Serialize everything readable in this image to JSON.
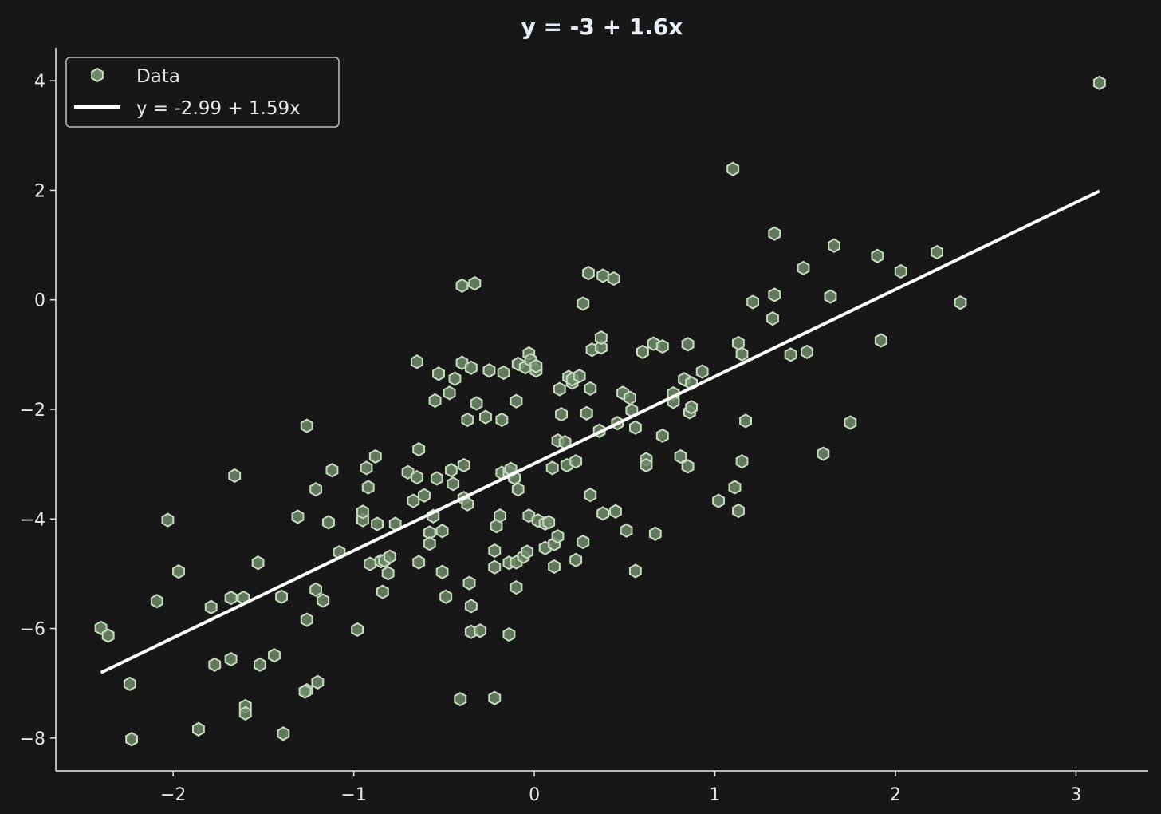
{
  "chart_data": {
    "type": "scatter",
    "title": "y = -3 + 1.6x",
    "xlabel": "",
    "ylabel": "",
    "xlim": [
      -2.65,
      3.4
    ],
    "ylim": [
      -8.6,
      4.6
    ],
    "xticks": [
      -2,
      -1,
      0,
      1,
      2,
      3
    ],
    "yticks": [
      -8,
      -6,
      -4,
      -2,
      0,
      2,
      4
    ],
    "grid": false,
    "legend": {
      "placement": "top-left",
      "entries": [
        "Data",
        "y = -2.99 + 1.59x"
      ]
    },
    "colors": {
      "background": "#171717",
      "marker_fill": "#6f8a6a",
      "marker_edge": "#c8dcc0",
      "fit_line": "#ffffff",
      "axis": "#e8e8e8"
    },
    "series": [
      {
        "name": "Data",
        "type": "scatter",
        "points": [
          [
            -2.4,
            -5.99
          ],
          [
            -2.36,
            -6.13
          ],
          [
            -2.24,
            -7.01
          ],
          [
            -2.23,
            -8.02
          ],
          [
            -2.09,
            -5.5
          ],
          [
            -2.03,
            -4.02
          ],
          [
            -1.97,
            -4.96
          ],
          [
            -1.86,
            -7.84
          ],
          [
            -1.79,
            -5.61
          ],
          [
            -1.77,
            -6.66
          ],
          [
            -1.68,
            -6.56
          ],
          [
            -1.68,
            -5.44
          ],
          [
            -1.66,
            -3.21
          ],
          [
            -1.61,
            -5.44
          ],
          [
            -1.6,
            -7.42
          ],
          [
            -1.6,
            -7.55
          ],
          [
            -1.53,
            -4.8
          ],
          [
            -1.52,
            -6.66
          ],
          [
            -1.44,
            -6.49
          ],
          [
            -1.4,
            -5.42
          ],
          [
            -1.39,
            -7.92
          ],
          [
            -1.31,
            -3.96
          ],
          [
            -1.26,
            -2.3
          ],
          [
            -1.26,
            -5.84
          ],
          [
            -1.26,
            -7.13
          ],
          [
            -1.27,
            -7.15
          ],
          [
            -1.21,
            -3.46
          ],
          [
            -1.21,
            -5.29
          ],
          [
            -1.2,
            -6.98
          ],
          [
            -1.17,
            -5.49
          ],
          [
            -1.14,
            -4.06
          ],
          [
            -1.12,
            -3.11
          ],
          [
            -1.08,
            -4.61
          ],
          [
            -0.98,
            -6.02
          ],
          [
            -0.95,
            -4.02
          ],
          [
            -0.95,
            -3.87
          ],
          [
            -0.93,
            -3.07
          ],
          [
            -0.92,
            -3.42
          ],
          [
            -0.91,
            -4.82
          ],
          [
            -0.88,
            -2.86
          ],
          [
            -0.87,
            -4.09
          ],
          [
            -0.85,
            -4.77
          ],
          [
            -0.84,
            -5.33
          ],
          [
            -0.83,
            -4.76
          ],
          [
            -0.81,
            -4.99
          ],
          [
            -0.8,
            -4.69
          ],
          [
            -0.77,
            -4.09
          ],
          [
            -0.7,
            -3.15
          ],
          [
            -0.67,
            -3.67
          ],
          [
            -0.65,
            -3.24
          ],
          [
            -0.65,
            -1.13
          ],
          [
            -0.64,
            -2.73
          ],
          [
            -0.64,
            -4.79
          ],
          [
            -0.61,
            -3.57
          ],
          [
            -0.58,
            -4.25
          ],
          [
            -0.58,
            -4.45
          ],
          [
            -0.56,
            -3.95
          ],
          [
            -0.55,
            -1.84
          ],
          [
            -0.54,
            -3.26
          ],
          [
            -0.53,
            -1.35
          ],
          [
            -0.51,
            -4.97
          ],
          [
            -0.51,
            -4.22
          ],
          [
            -0.49,
            -5.42
          ],
          [
            -0.47,
            -1.7
          ],
          [
            -0.46,
            -3.11
          ],
          [
            -0.45,
            -3.36
          ],
          [
            -0.44,
            -1.44
          ],
          [
            -0.41,
            -7.29
          ],
          [
            -0.4,
            0.26
          ],
          [
            -0.4,
            -1.15
          ],
          [
            -0.39,
            -3.62
          ],
          [
            -0.39,
            -3.02
          ],
          [
            -0.37,
            -3.73
          ],
          [
            -0.37,
            -2.19
          ],
          [
            -0.35,
            -1.24
          ],
          [
            -0.36,
            -5.17
          ],
          [
            -0.35,
            -5.59
          ],
          [
            -0.35,
            -6.06
          ],
          [
            -0.33,
            0.3
          ],
          [
            -0.32,
            -1.89
          ],
          [
            -0.3,
            -6.04
          ],
          [
            -0.27,
            -2.14
          ],
          [
            -0.25,
            -1.29
          ],
          [
            -0.22,
            -4.58
          ],
          [
            -0.22,
            -4.88
          ],
          [
            -0.22,
            -7.27
          ],
          [
            -0.21,
            -4.13
          ],
          [
            -0.19,
            -3.94
          ],
          [
            -0.18,
            -2.19
          ],
          [
            -0.18,
            -3.16
          ],
          [
            -0.17,
            -1.33
          ],
          [
            -0.14,
            -6.11
          ],
          [
            -0.14,
            -3.15
          ],
          [
            -0.14,
            -4.8
          ],
          [
            -0.13,
            -3.09
          ],
          [
            -0.11,
            -3.25
          ],
          [
            -0.1,
            -5.25
          ],
          [
            -0.1,
            -4.79
          ],
          [
            -0.1,
            -1.85
          ],
          [
            -0.09,
            -1.17
          ],
          [
            -0.09,
            -3.46
          ],
          [
            -0.06,
            -4.69
          ],
          [
            -0.05,
            -1.23
          ],
          [
            -0.04,
            -4.6
          ],
          [
            -0.03,
            -0.98
          ],
          [
            -0.02,
            -1.1
          ],
          [
            -0.03,
            -3.94
          ],
          [
            0.01,
            -1.29
          ],
          [
            0.01,
            -1.21
          ],
          [
            0.02,
            -4.03
          ],
          [
            0.06,
            -4.53
          ],
          [
            0.06,
            -4.08
          ],
          [
            0.08,
            -4.06
          ],
          [
            0.1,
            -3.07
          ],
          [
            0.11,
            -4.46
          ],
          [
            0.11,
            -4.87
          ],
          [
            0.13,
            -2.57
          ],
          [
            0.13,
            -4.32
          ],
          [
            0.14,
            -1.63
          ],
          [
            0.15,
            -2.09
          ],
          [
            0.17,
            -2.6
          ],
          [
            0.18,
            -3.02
          ],
          [
            0.19,
            -1.41
          ],
          [
            0.21,
            -1.51
          ],
          [
            0.21,
            -1.45
          ],
          [
            0.23,
            -2.95
          ],
          [
            0.23,
            -4.75
          ],
          [
            0.25,
            -1.39
          ],
          [
            0.27,
            -4.42
          ],
          [
            0.27,
            -0.07
          ],
          [
            0.29,
            -2.07
          ],
          [
            0.3,
            0.49
          ],
          [
            0.31,
            -1.62
          ],
          [
            0.31,
            -3.56
          ],
          [
            0.32,
            -0.91
          ],
          [
            0.36,
            -2.39
          ],
          [
            0.37,
            -0.87
          ],
          [
            0.37,
            -0.69
          ],
          [
            0.38,
            0.44
          ],
          [
            0.38,
            -3.9
          ],
          [
            0.44,
            0.39
          ],
          [
            0.45,
            -3.86
          ],
          [
            0.46,
            -2.25
          ],
          [
            0.49,
            -1.7
          ],
          [
            0.51,
            -4.21
          ],
          [
            0.53,
            -1.79
          ],
          [
            0.54,
            -2.02
          ],
          [
            0.56,
            -2.33
          ],
          [
            0.56,
            -4.95
          ],
          [
            0.6,
            -0.95
          ],
          [
            0.62,
            -2.91
          ],
          [
            0.62,
            -3.02
          ],
          [
            0.66,
            -0.8
          ],
          [
            0.67,
            -4.27
          ],
          [
            0.71,
            -0.85
          ],
          [
            0.71,
            -2.48
          ],
          [
            0.77,
            -1.71
          ],
          [
            0.77,
            -1.86
          ],
          [
            0.81,
            -2.86
          ],
          [
            0.83,
            -1.45
          ],
          [
            0.85,
            -0.81
          ],
          [
            0.85,
            -3.04
          ],
          [
            0.86,
            -2.05
          ],
          [
            0.87,
            -1.96
          ],
          [
            0.87,
            -1.52
          ],
          [
            0.93,
            -1.31
          ],
          [
            1.02,
            -3.67
          ],
          [
            1.1,
            2.39
          ],
          [
            1.11,
            -3.42
          ],
          [
            1.13,
            -3.85
          ],
          [
            1.13,
            -0.79
          ],
          [
            1.15,
            -0.99
          ],
          [
            1.15,
            -2.95
          ],
          [
            1.17,
            -2.21
          ],
          [
            1.21,
            -0.04
          ],
          [
            1.32,
            -0.34
          ],
          [
            1.33,
            0.09
          ],
          [
            1.33,
            1.21
          ],
          [
            1.42,
            -1.0
          ],
          [
            1.49,
            0.58
          ],
          [
            1.51,
            -0.95
          ],
          [
            1.6,
            -2.81
          ],
          [
            1.64,
            0.06
          ],
          [
            1.66,
            0.99
          ],
          [
            1.75,
            -2.24
          ],
          [
            1.9,
            0.8
          ],
          [
            1.92,
            -0.74
          ],
          [
            2.03,
            0.52
          ],
          [
            2.23,
            0.87
          ],
          [
            2.36,
            -0.05
          ],
          [
            3.13,
            3.96
          ]
        ]
      },
      {
        "name": "y = -2.99 + 1.59x",
        "type": "line",
        "intercept": -2.99,
        "slope": 1.59,
        "x_range": [
          -2.4,
          3.13
        ]
      }
    ]
  }
}
